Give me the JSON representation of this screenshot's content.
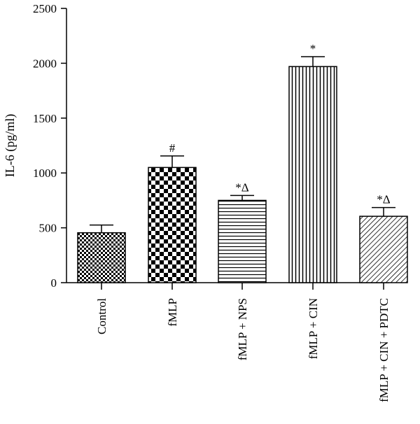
{
  "chart_data": {
    "type": "bar",
    "ylabel": "IL-6 (pg/ml)",
    "ylim": [
      0,
      2500
    ],
    "yticks": [
      0,
      500,
      1000,
      1500,
      2000,
      2500
    ],
    "categories": [
      "Control",
      "fMLP",
      "fMLP + NPS",
      "fMLP + CIN",
      "fMLP + CIN + PDTC"
    ],
    "values": [
      455,
      1050,
      750,
      1970,
      605
    ],
    "errors": [
      70,
      105,
      45,
      90,
      80
    ],
    "annotations": [
      "",
      "#",
      "*Δ",
      "*",
      "*Δ"
    ],
    "patterns": [
      "fine-checker",
      "large-checker",
      "horizontal-lines",
      "vertical-lines",
      "diagonal-lines"
    ],
    "grid": false,
    "legend": "none"
  }
}
